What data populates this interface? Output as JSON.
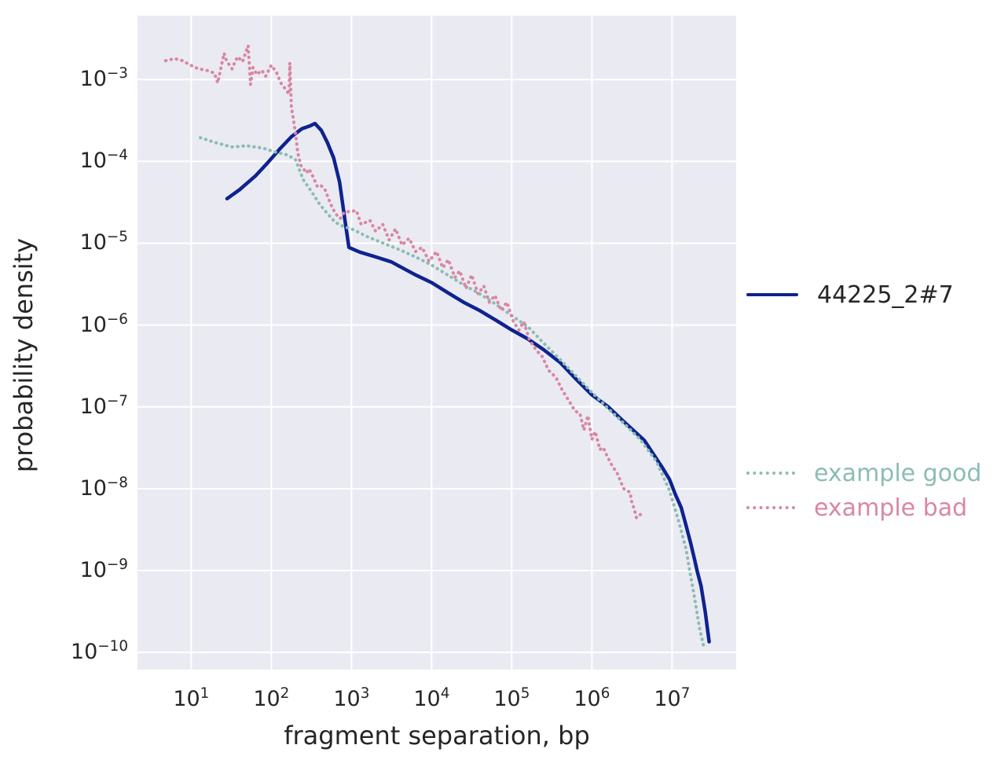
{
  "figure": {
    "background": "#ffffff",
    "plot_background": "#eaeaf2",
    "grid_color": "#ffffff",
    "text_color": "#262626"
  },
  "chart_data": {
    "type": "line",
    "title": "",
    "xlabel": "fragment separation, bp",
    "ylabel": "probability density",
    "x_scale": "log",
    "y_scale": "log",
    "grid": true,
    "legend_position": "right-outside",
    "x_tick_exponents": [
      1,
      2,
      3,
      4,
      5,
      6,
      7
    ],
    "y_tick_exponents": [
      -3,
      -4,
      -5,
      -6,
      -7,
      -8,
      -9,
      -10
    ],
    "x_log_range": [
      0.33,
      7.8
    ],
    "y_log_range": [
      -10.21,
      -2.22
    ],
    "series": [
      {
        "name": "44225_2#7",
        "color": "#0e238f",
        "label_color": "#262626",
        "style": "solid",
        "points": [
          [
            28,
            3.5e-05
          ],
          [
            40,
            4.5e-05
          ],
          [
            63,
            6.6e-05
          ],
          [
            89,
            9.5e-05
          ],
          [
            126,
            0.00014
          ],
          [
            178,
            0.0002
          ],
          [
            240,
            0.00025
          ],
          [
            300,
            0.00027
          ],
          [
            350,
            0.00029
          ],
          [
            420,
            0.00024
          ],
          [
            500,
            0.00017
          ],
          [
            600,
            0.00011
          ],
          [
            710,
            5.6e-05
          ],
          [
            830,
            1.9e-05
          ],
          [
            930,
            8.9e-06
          ],
          [
            1260,
            7.8e-06
          ],
          [
            2000,
            6.8e-06
          ],
          [
            3160,
            5.9e-06
          ],
          [
            4470,
            4.9e-06
          ],
          [
            6300,
            4.1e-06
          ],
          [
            10000,
            3.3e-06
          ],
          [
            15800,
            2.5e-06
          ],
          [
            25000,
            1.9e-06
          ],
          [
            40000,
            1.5e-06
          ],
          [
            63000,
            1.15e-06
          ],
          [
            100000,
            8.7e-07
          ],
          [
            158000,
            6.8e-07
          ],
          [
            250000,
            5e-07
          ],
          [
            400000,
            3.5e-07
          ],
          [
            630000,
            2.2e-07
          ],
          [
            1000000.0,
            1.4e-07
          ],
          [
            1600000.0,
            1e-07
          ],
          [
            2500000.0,
            6.6e-08
          ],
          [
            4500000.0,
            3.9e-08
          ],
          [
            7600000.0,
            1.8e-08
          ],
          [
            9300000.0,
            1.3e-08
          ],
          [
            11000000.0,
            8.5e-09
          ],
          [
            13000000.0,
            5.9e-09
          ],
          [
            15000000.0,
            3.5e-09
          ],
          [
            17000000.0,
            2.2e-09
          ],
          [
            19000000.0,
            1.4e-09
          ],
          [
            20500000.0,
            1e-09
          ],
          [
            23000000.0,
            6.5e-10
          ],
          [
            26000000.0,
            3.1e-10
          ],
          [
            29000000.0,
            1.35e-10
          ]
        ]
      },
      {
        "name": "example good",
        "color": "#8cbcb3",
        "label_color": "#8cbcb3",
        "style": "dotted",
        "points": [
          [
            13,
            0.000195
          ],
          [
            20,
            0.00017
          ],
          [
            32,
            0.00015
          ],
          [
            50,
            0.000155
          ],
          [
            79,
            0.000145
          ],
          [
            112,
            0.00013
          ],
          [
            158,
            0.00012
          ],
          [
            200,
            0.000105
          ],
          [
            250,
            6e-05
          ],
          [
            316,
            4.3e-05
          ],
          [
            400,
            3e-05
          ],
          [
            500,
            2.3e-05
          ],
          [
            630,
            1.8e-05
          ],
          [
            790,
            1.6e-05
          ],
          [
            1000,
            1.5e-05
          ],
          [
            1580,
            1.2e-05
          ],
          [
            2500,
            1e-05
          ],
          [
            4000,
            8.3e-06
          ],
          [
            6300,
            6.8e-06
          ],
          [
            10000,
            5.4e-06
          ],
          [
            15800,
            4.1e-06
          ],
          [
            25000,
            3.1e-06
          ],
          [
            40000,
            2.4e-06
          ],
          [
            63000,
            1.8e-06
          ],
          [
            100000.0,
            1.3e-06
          ],
          [
            160000.0,
            9.5e-07
          ],
          [
            250000.0,
            6e-07
          ],
          [
            400000.0,
            3.8e-07
          ],
          [
            630000.0,
            2.4e-07
          ],
          [
            1000000.0,
            1.5e-07
          ],
          [
            1600000.0,
            9.5e-08
          ],
          [
            2500000.0,
            6.3e-08
          ],
          [
            4000000.0,
            4e-08
          ],
          [
            6300000.0,
            2.2e-08
          ],
          [
            9300000.0,
            9.5e-09
          ],
          [
            12000000.0,
            4.1e-09
          ],
          [
            15000000.0,
            1.8e-09
          ],
          [
            17000000.0,
            8.7e-10
          ],
          [
            19000000.0,
            4.8e-10
          ],
          [
            22000000.0,
            2e-10
          ],
          [
            25000000.0,
            1.15e-10
          ]
        ]
      },
      {
        "name": "example bad",
        "color": "#d987a3",
        "label_color": "#d987a3",
        "style": "dotted",
        "points": [
          [
            4.8,
            0.0017
          ],
          [
            6.2,
            0.0018
          ],
          [
            7.8,
            0.0017
          ],
          [
            9.8,
            0.0015
          ],
          [
            12.3,
            0.00135
          ],
          [
            15.5,
            0.0013
          ],
          [
            19.5,
            0.0012
          ],
          [
            21.4,
            0.00091
          ],
          [
            25.7,
            0.0021
          ],
          [
            27.5,
            0.0017
          ],
          [
            32.4,
            0.00135
          ],
          [
            34.7,
            0.0016
          ],
          [
            38,
            0.0019
          ],
          [
            43.7,
            0.00165
          ],
          [
            51.3,
            0.0026
          ],
          [
            55,
            0.00087
          ],
          [
            59,
            0.0014
          ],
          [
            66,
            0.00115
          ],
          [
            76,
            0.0013
          ],
          [
            85,
            0.0011
          ],
          [
            100,
            0.0015
          ],
          [
            117,
            0.0012
          ],
          [
            132,
            0.0009
          ],
          [
            148,
            0.00078
          ],
          [
            166,
            0.00066
          ],
          [
            170,
            0.0016
          ],
          [
            178,
            0.00045
          ],
          [
            186,
            0.00036
          ],
          [
            200,
            0.00022
          ],
          [
            214,
            0.000126
          ],
          [
            234,
            8.9e-05
          ],
          [
            275,
            7.2e-05
          ],
          [
            295,
            8.1e-05
          ],
          [
            331,
            6.5e-05
          ],
          [
            372,
            5e-05
          ],
          [
            407,
            5.2e-05
          ],
          [
            468,
            4.5e-05
          ],
          [
            550,
            3e-05
          ],
          [
            630,
            2.3e-05
          ],
          [
            724,
            2e-05
          ],
          [
            813,
            2.4e-05
          ],
          [
            1150,
            2.5e-05
          ],
          [
            1320,
            1.7e-05
          ],
          [
            1700,
            1.9e-05
          ],
          [
            2000,
            1.4e-05
          ],
          [
            2450,
            1.7e-05
          ],
          [
            2950,
            1.1e-05
          ],
          [
            3550,
            1.5e-05
          ],
          [
            4270,
            9.5e-06
          ],
          [
            5250,
            1.15e-05
          ],
          [
            6300,
            7.9e-06
          ],
          [
            7600,
            8.9e-06
          ],
          [
            9300,
            6e-06
          ],
          [
            11500,
            7.9e-06
          ],
          [
            13800,
            5e-06
          ],
          [
            16200,
            6.3e-06
          ],
          [
            19500,
            3.8e-06
          ],
          [
            22400,
            4.6e-06
          ],
          [
            26900,
            2.8e-06
          ],
          [
            31600,
            4.1e-06
          ],
          [
            38000,
            2.4e-06
          ],
          [
            44700,
            3e-06
          ],
          [
            52500,
            1.9e-06
          ],
          [
            61700,
            2.3e-06
          ],
          [
            74000,
            1.5e-06
          ],
          [
            87000,
            1.9e-06
          ],
          [
            105000,
            1.1e-06
          ],
          [
            123000,
            8.7e-07
          ],
          [
            141000,
            1.1e-06
          ],
          [
            166000,
            6.6e-07
          ],
          [
            200000,
            5e-07
          ],
          [
            240000,
            4.1e-07
          ],
          [
            288000,
            2.8e-07
          ],
          [
            355000,
            2.3e-07
          ],
          [
            427000,
            1.6e-07
          ],
          [
            513000,
            1.2e-07
          ],
          [
            617000,
            8.9e-08
          ],
          [
            708000,
            8.3e-08
          ],
          [
            794000,
            5.2e-08
          ],
          [
            891000,
            7.8e-08
          ],
          [
            1000000.0,
            4e-08
          ],
          [
            1100000.0,
            5e-08
          ],
          [
            1260000.0,
            3e-08
          ],
          [
            1380000.0,
            3.2e-08
          ],
          [
            1550000.0,
            2.5e-08
          ],
          [
            1740000.0,
            2e-08
          ],
          [
            2100000.0,
            1.5e-08
          ],
          [
            2300000.0,
            1.2e-08
          ],
          [
            2500000.0,
            1e-08
          ],
          [
            3000000.0,
            9e-09
          ],
          [
            3100000.0,
            7.2e-09
          ],
          [
            3400000.0,
            5.5e-09
          ],
          [
            3600000.0,
            4.4e-09
          ],
          [
            4100000.0,
            4.9e-09
          ],
          [
            4400000.0,
            4.7e-09
          ]
        ]
      }
    ]
  }
}
